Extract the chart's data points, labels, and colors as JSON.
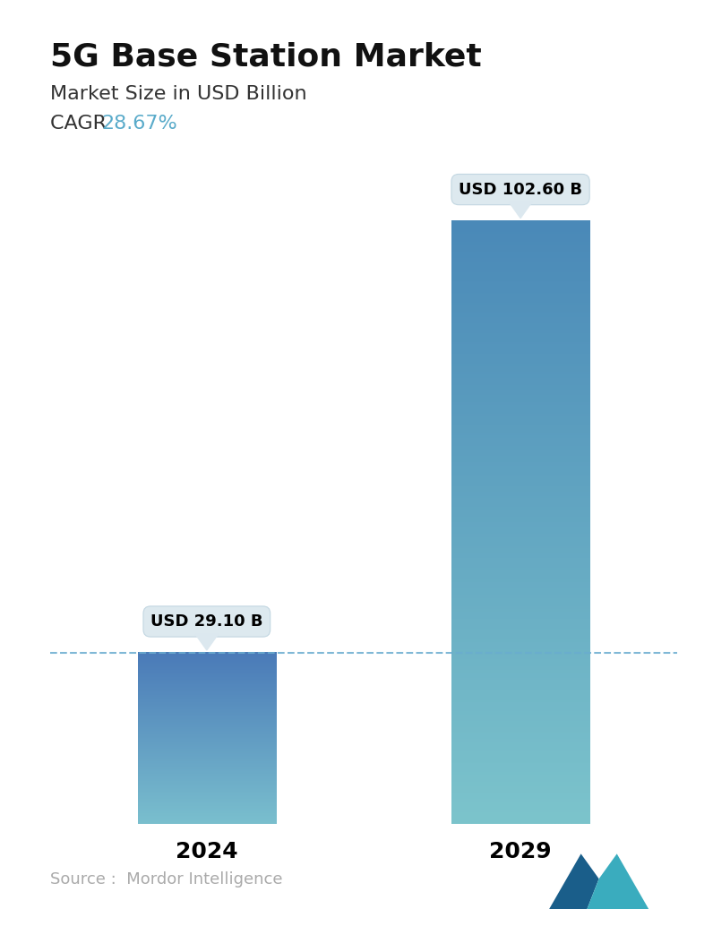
{
  "title": "5G Base Station Market",
  "subtitle": "Market Size in USD Billion",
  "cagr_label": "CAGR ",
  "cagr_value": "28.67%",
  "cagr_color": "#5AABCA",
  "categories": [
    "2024",
    "2029"
  ],
  "values": [
    29.1,
    102.6
  ],
  "bar_labels": [
    "USD 29.10 B",
    "USD 102.60 B"
  ],
  "bar_top_2024": "#4A7AB8",
  "bar_bottom_2024": "#7ABFCE",
  "bar_top_2029": "#4A89B8",
  "bar_bottom_2029": "#7CC4CC",
  "dashed_line_color": "#6AACCF",
  "source_text": "Source :  Mordor Intelligence",
  "source_color": "#AAAAAA",
  "background_color": "#FFFFFF",
  "title_fontsize": 26,
  "subtitle_fontsize": 16,
  "cagr_fontsize": 16,
  "tick_fontsize": 18,
  "source_fontsize": 13,
  "tooltip_fontsize": 13,
  "bar_positions": [
    0.25,
    0.75
  ],
  "bar_width": 0.22,
  "max_val": 115
}
